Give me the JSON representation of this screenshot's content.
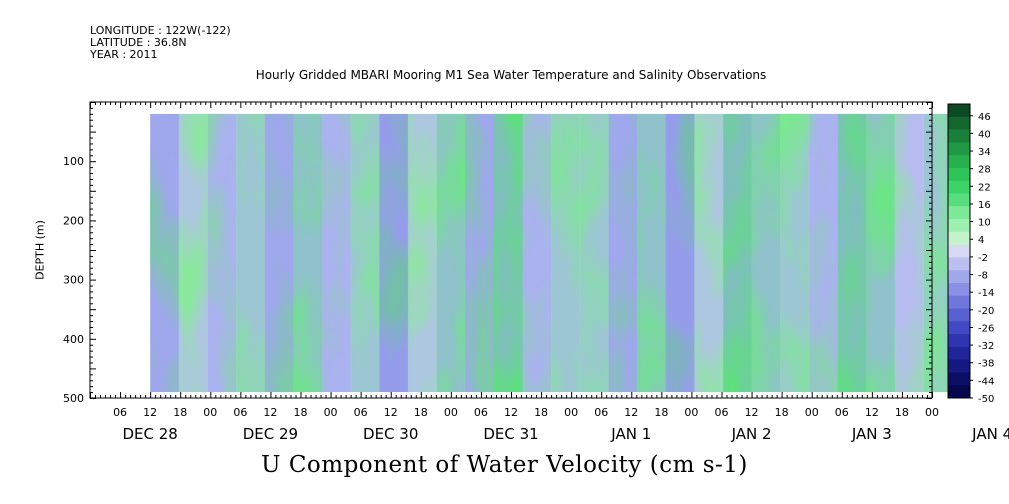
{
  "header": {
    "longitude": "LONGITUDE : 122W(-122)",
    "latitude": "LATITUDE : 36.8N",
    "year": "YEAR : 2011"
  },
  "chart_data": {
    "type": "heatmap",
    "title": "Hourly Gridded MBARI Mooring M1 Sea Water Temperature and Salinity Observations",
    "variable_label": "U Component of Water Velocity (cm s-1)",
    "ylabel": "DEPTH (m)",
    "ylim": [
      500,
      0
    ],
    "y_axis_inverted": true,
    "y_ticks": [
      100,
      200,
      300,
      400,
      500
    ],
    "x_start": "DEC 28 2011 00:00",
    "x_end": "JAN 4 2012 00:00",
    "x_hour_ticks": [
      "06",
      "12",
      "18",
      "00",
      "06",
      "12",
      "18",
      "00",
      "06",
      "12",
      "18",
      "00",
      "06",
      "12",
      "18",
      "00",
      "06",
      "12",
      "18",
      "00",
      "06",
      "12",
      "18",
      "00",
      "06",
      "12",
      "18",
      "00"
    ],
    "x_day_labels": [
      "DEC 28",
      "DEC 29",
      "DEC 30",
      "DEC 31",
      "JAN 1",
      "JAN 2",
      "JAN 3",
      "JAN 4"
    ],
    "data_extent": {
      "time_start": "DEC 28 2011 12:00",
      "time_end": "JAN 4 2012 04:00",
      "depth_min": 20,
      "depth_max": 490
    },
    "colorbar": {
      "min": -50,
      "max": 50,
      "labels": [
        "46",
        "40",
        "34",
        "28",
        "22",
        "16",
        "10",
        "4",
        "-2",
        "-8",
        "-14",
        "-20",
        "-26",
        "-32",
        "-38",
        "-44",
        "-50"
      ],
      "colors_high_to_low": [
        "#0b4a22",
        "#12662e",
        "#18803a",
        "#1f9944",
        "#26b04e",
        "#2ec458",
        "#3cd467",
        "#58de7e",
        "#7ce898",
        "#9ef0b0",
        "#c4f3cc",
        "#d8daf4",
        "#bcc0f0",
        "#a2a8ec",
        "#8a90e6",
        "#6f76dc",
        "#5860d2",
        "#4249c4",
        "#2f35b0",
        "#1f2498",
        "#141880",
        "#0c0e66",
        "#06074a"
      ]
    },
    "domain_colors": [
      "#9da7ee",
      "#62e27b"
    ],
    "time_series_u_cm_s_by_segment": [
      -8,
      6,
      -4,
      10,
      -10,
      14,
      -6,
      8,
      -12,
      4,
      12,
      -8,
      16,
      -4,
      10,
      8,
      -10,
      14,
      -14,
      6,
      18,
      14,
      10,
      -6,
      16,
      12,
      -2,
      8
    ]
  }
}
